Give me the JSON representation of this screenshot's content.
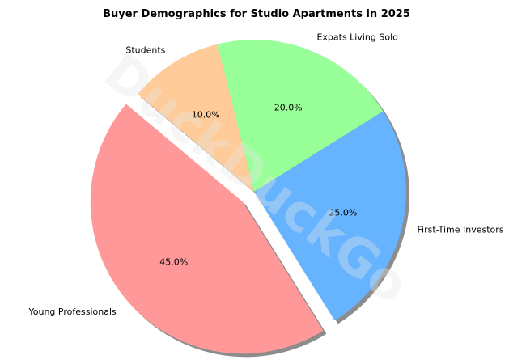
{
  "chart_data": {
    "type": "pie",
    "title": "Buyer Demographics for Studio Apartments in 2025",
    "slices": [
      {
        "label": "Young Professionals",
        "value": 45.0,
        "display": "45.0%",
        "color": "#ff9999",
        "explode": true
      },
      {
        "label": "First-Time Investors",
        "value": 25.0,
        "display": "25.0%",
        "color": "#66b3ff",
        "explode": false
      },
      {
        "label": "Expats Living Solo",
        "value": 20.0,
        "display": "20.0%",
        "color": "#99ff99",
        "explode": false
      },
      {
        "label": "Students",
        "value": 10.0,
        "display": "10.0%",
        "color": "#ffcc99",
        "explode": false
      }
    ],
    "start_angle_deg": 140,
    "direction": "counterclockwise",
    "shadow": true,
    "legend": "none"
  },
  "watermark": "DuckDuckGo"
}
